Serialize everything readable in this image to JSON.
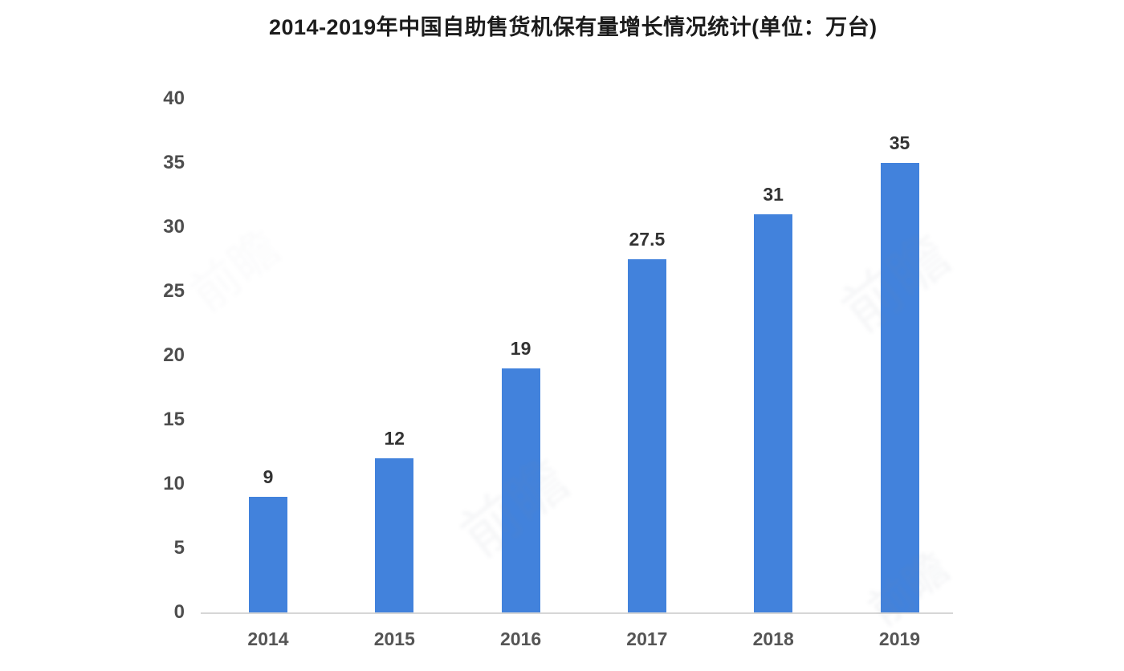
{
  "title": "2014-2019年中国自助售货机保有量增长情况统计(单位：万台)",
  "watermark_text": "前瞻",
  "colors": {
    "bar": "#4282dc",
    "axis_line": "#d6d6d6",
    "title_text": "#1c1c1c",
    "tick_text": "#4e4e4e",
    "data_label_text": "#333333",
    "background": "#ffffff"
  },
  "chart_data": {
    "type": "bar",
    "title": "2014-2019年中国自助售货机保有量增长情况统计(单位：万台)",
    "categories": [
      "2014",
      "2015",
      "2016",
      "2017",
      "2018",
      "2019"
    ],
    "values": [
      9,
      12,
      19,
      27.5,
      31,
      35
    ],
    "data_labels": [
      "9",
      "12",
      "19",
      "27.5",
      "31",
      "35"
    ],
    "xlabel": "",
    "ylabel": "",
    "unit": "万台",
    "ylim": [
      0,
      40
    ],
    "yticks": [
      0,
      5,
      10,
      15,
      20,
      25,
      30,
      35,
      40
    ],
    "grid": false,
    "legend": false,
    "bar_color": "#4282dc"
  }
}
